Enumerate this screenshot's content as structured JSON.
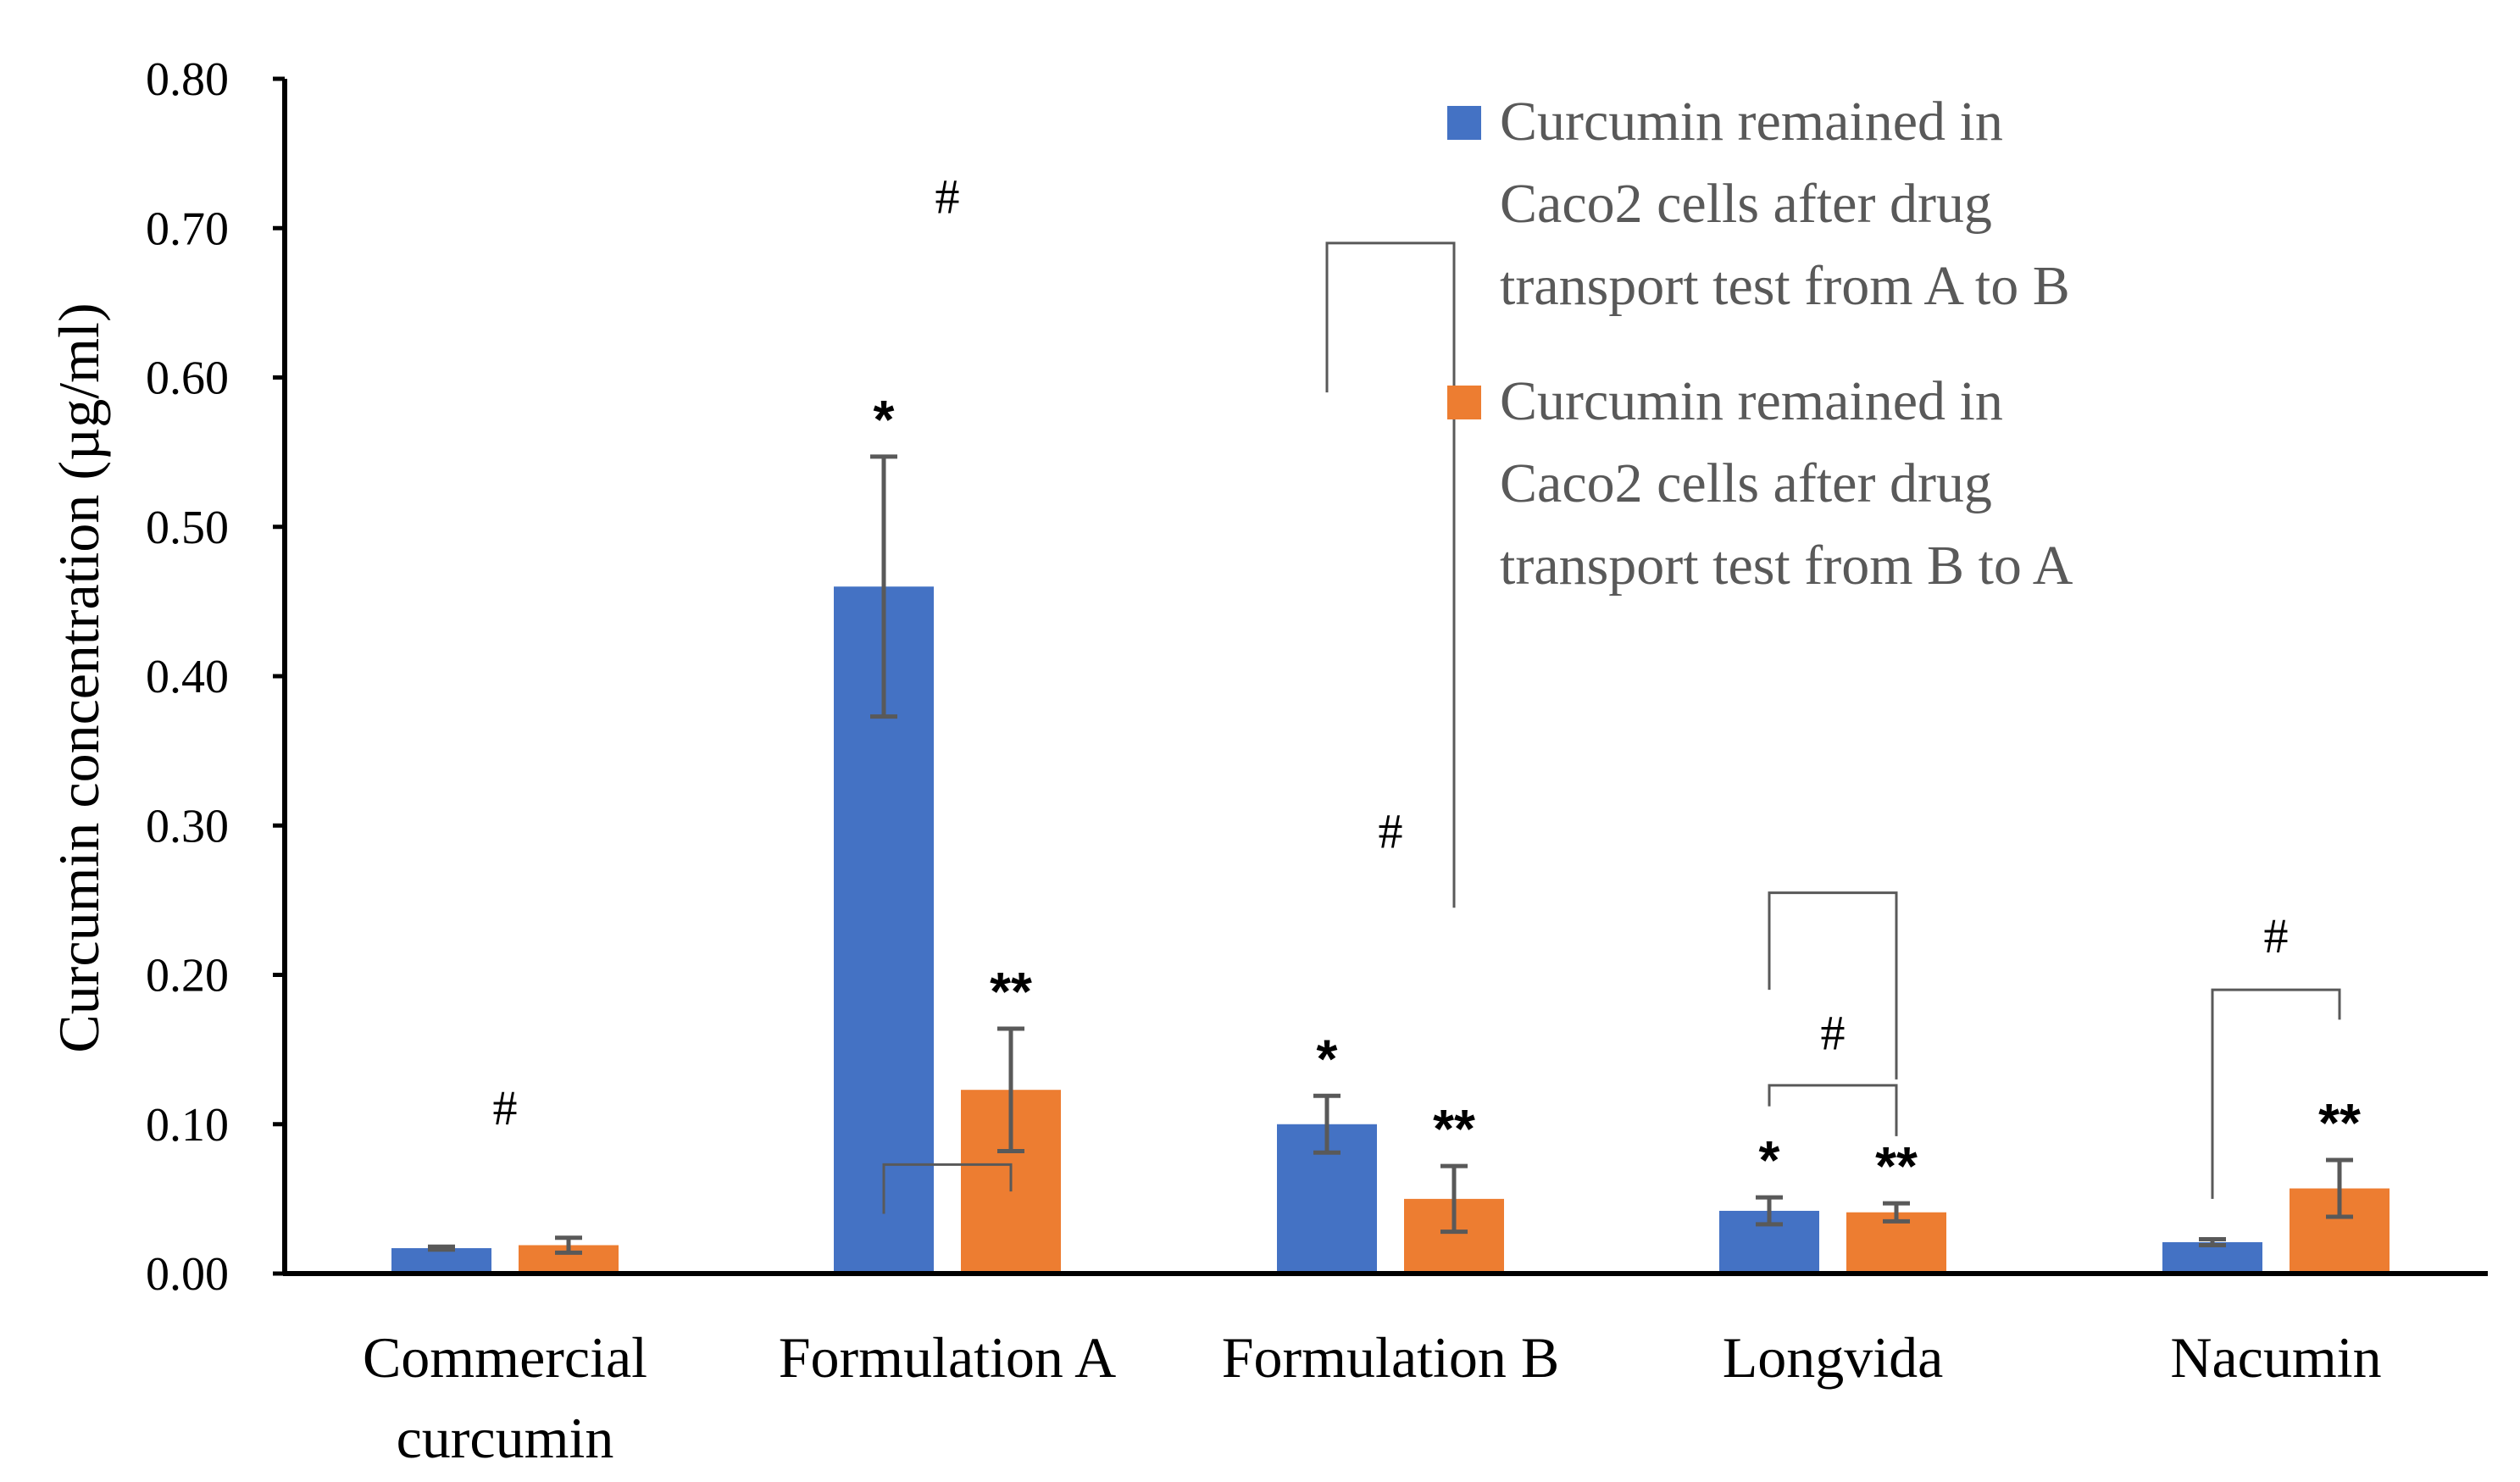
{
  "chart_data": {
    "type": "bar",
    "title": "",
    "xlabel": "",
    "ylabel": "Curcumin  concentration (µg/ml)",
    "ylim": [
      0,
      0.8
    ],
    "yticks": [
      "0.00",
      "0.10",
      "0.20",
      "0.30",
      "0.40",
      "0.50",
      "0.60",
      "0.70",
      "0.80"
    ],
    "categories": [
      [
        "Commercial",
        "curcumin"
      ],
      [
        "Formulation A"
      ],
      [
        "Formulation B"
      ],
      [
        "Longvida"
      ],
      [
        "Nacumin"
      ]
    ],
    "series": [
      {
        "name": "Curcumin remained in Caco2 cells after drug transport test from A to B",
        "legend_lines": [
          "Curcumin remained in",
          "Caco2 cells after drug",
          "transport test from A to B"
        ],
        "color": "#4472C4",
        "values": [
          0.017,
          0.46,
          0.1,
          0.042,
          0.021
        ],
        "errors": [
          0.001,
          0.087,
          0.019,
          0.009,
          0.002
        ]
      },
      {
        "name": "Curcumin remained in Caco2 cells after drug transport test from B to A",
        "legend_lines": [
          "Curcumin remained in",
          "Caco2 cells after drug",
          "transport test from B to A"
        ],
        "color": "#ED7D31",
        "values": [
          0.019,
          0.123,
          0.05,
          0.041,
          0.057
        ],
        "errors": [
          0.005,
          0.041,
          0.022,
          0.006,
          0.019
        ]
      }
    ],
    "annotations": [
      {
        "category": 0,
        "series": 0,
        "text": ""
      },
      {
        "category": 1,
        "series": 0,
        "text": "*"
      },
      {
        "category": 1,
        "series": 1,
        "text": "**"
      },
      {
        "category": 2,
        "series": 0,
        "text": "*"
      },
      {
        "category": 2,
        "series": 1,
        "text": "**"
      },
      {
        "category": 3,
        "series": 0,
        "text": "*"
      },
      {
        "category": 3,
        "series": 1,
        "text": "**"
      },
      {
        "category": 4,
        "series": 1,
        "text": "**"
      }
    ],
    "hash_marks": [
      {
        "category": 0,
        "text": "#",
        "level": 0.1
      },
      {
        "category": 1,
        "text": "#",
        "level": 0.71
      },
      {
        "category": 2,
        "text": "#",
        "level": 0.285
      },
      {
        "category": 3,
        "text": "#",
        "level": 0.15
      },
      {
        "category": 4,
        "text": "#",
        "level": 0.215
      }
    ],
    "legend_position": "top-right",
    "axis_color": "#000000",
    "errorbar_color": "#595959",
    "bracket_color": "#595959"
  }
}
